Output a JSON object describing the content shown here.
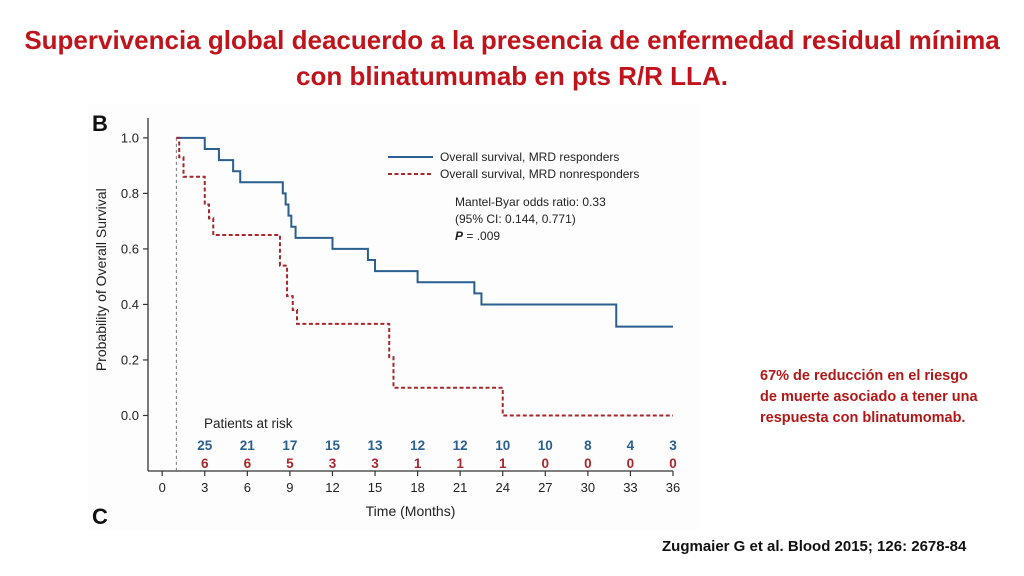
{
  "slide": {
    "title_lines": [
      "Supervivencia global deacuerdo a la presencia de enfermedad residual mínima",
      "con blinatumumab en pts R/R LLA."
    ],
    "callout_lines": [
      "67% de reducción en el riesgo",
      "de muerte asociado a tener una",
      "respuesta con blinatumomab."
    ],
    "citation": "Zugmaier G et al. Blood 2015; 126: 2678-84",
    "title_color": "#c0141c"
  },
  "chart_data": {
    "type": "line",
    "panel_label": "B",
    "next_panel_label": "C",
    "xlabel": "Time (Months)",
    "ylabel": "Probability of Overall Survival",
    "xlim": [
      -1,
      36
    ],
    "ylim": [
      -0.2,
      1.05
    ],
    "x_ticks": [
      0,
      3,
      6,
      9,
      12,
      15,
      18,
      21,
      24,
      27,
      30,
      33,
      36
    ],
    "y_ticks": [
      0.0,
      0.2,
      0.4,
      0.6,
      0.8,
      1.0
    ],
    "y_tick_labels": [
      "0.0",
      "0.2",
      "0.4",
      "0.6",
      "0.8",
      "1.0"
    ],
    "landmark_x": 1,
    "series": [
      {
        "name": "Overall survival, MRD responders",
        "color": "#2a5f8f",
        "style": "solid",
        "steps": [
          [
            1,
            1.0
          ],
          [
            3,
            0.96
          ],
          [
            4,
            0.92
          ],
          [
            5,
            0.88
          ],
          [
            5.5,
            0.84
          ],
          [
            8.5,
            0.8
          ],
          [
            8.7,
            0.76
          ],
          [
            8.9,
            0.72
          ],
          [
            9.1,
            0.68
          ],
          [
            9.4,
            0.64
          ],
          [
            12,
            0.6
          ],
          [
            14.5,
            0.56
          ],
          [
            15,
            0.52
          ],
          [
            18,
            0.48
          ],
          [
            22,
            0.44
          ],
          [
            22.5,
            0.4
          ],
          [
            32,
            0.32
          ],
          [
            36,
            0.32
          ]
        ]
      },
      {
        "name": "Overall survival, MRD nonresponders",
        "color": "#a8272c",
        "style": "dashed",
        "steps": [
          [
            1,
            1.0
          ],
          [
            1.2,
            0.93
          ],
          [
            1.5,
            0.86
          ],
          [
            3,
            0.76
          ],
          [
            3.3,
            0.71
          ],
          [
            3.6,
            0.65
          ],
          [
            8.3,
            0.54
          ],
          [
            8.8,
            0.43
          ],
          [
            9.2,
            0.38
          ],
          [
            9.5,
            0.33
          ],
          [
            16,
            0.21
          ],
          [
            16.3,
            0.1
          ],
          [
            24,
            0.0
          ],
          [
            36,
            0.0
          ]
        ]
      }
    ],
    "stats_lines": [
      "Mantel-Byar odds ratio: 0.33",
      "(95% CI: 0.144, 0.771)"
    ],
    "p_label": "P",
    "p_value": " = .009",
    "risk_table": {
      "title": "Patients at risk",
      "times": [
        3,
        6,
        9,
        12,
        15,
        18,
        21,
        24,
        27,
        30,
        33,
        36
      ],
      "responders": [
        "25",
        "21",
        "17",
        "15",
        "13",
        "12",
        "12",
        "10",
        "10",
        "8",
        "4",
        "3"
      ],
      "nonresponders": [
        "6",
        "6",
        "5",
        "3",
        "3",
        "1",
        "1",
        "1",
        "0",
        "0",
        "0",
        "0"
      ]
    },
    "legend_position": "top-right",
    "grid": false
  }
}
